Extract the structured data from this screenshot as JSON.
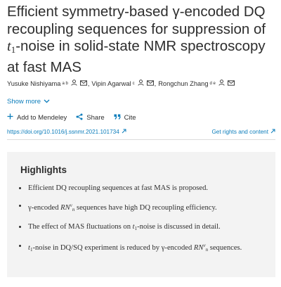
{
  "article": {
    "title_part1": "Efficient symmetry-based γ-encoded DQ recoupling sequences for suppression of ",
    "title_math": "t",
    "title_sub": "1",
    "title_part2": "-noise in solid-state NMR spectroscopy at fast MAS"
  },
  "authors": [
    {
      "name": "Yusuke Nishiyama",
      "affil": "a b"
    },
    {
      "name": "Vipin Agarwal",
      "affil": "c"
    },
    {
      "name": "Rongchun Zhang",
      "affil": "d e"
    }
  ],
  "author_separator": ",",
  "show_more": "Show more",
  "actions": {
    "mendeley": "Add to Mendeley",
    "share": "Share",
    "cite": "Cite"
  },
  "links": {
    "doi": "https://doi.org/10.1016/j.ssnmr.2021.101734",
    "rights": "Get rights and content"
  },
  "highlights": {
    "title": "Highlights",
    "item1": "Efficient DQ recoupling sequences at fast MAS is proposed.",
    "item2_pre": "γ-encoded ",
    "item2_R": "RN",
    "item2_sup": "ν",
    "item2_sub": "n",
    "item2_post": " sequences have high DQ recoupling efficiency.",
    "item3_pre": "The effect of MAS fluctuations on ",
    "item3_t": "t",
    "item3_sub": "1",
    "item3_post": "-noise is discussed in detail.",
    "item4_t": "t",
    "item4_sub": "1",
    "item4_pre": "-noise in DQ/SQ experiment is reduced by γ-encoded ",
    "item4_R": "RN",
    "item4_sup": "ν",
    "item4_sub2": "n",
    "item4_post": " sequences."
  },
  "colors": {
    "link": "#0c7dbb",
    "text": "#2e2e2e",
    "highlights_bg": "#f3f3f3"
  },
  "icons": [
    "person-icon",
    "envelope-icon",
    "chevron-down-icon",
    "plus-icon",
    "share-icon",
    "quote-icon",
    "external-link-icon"
  ]
}
